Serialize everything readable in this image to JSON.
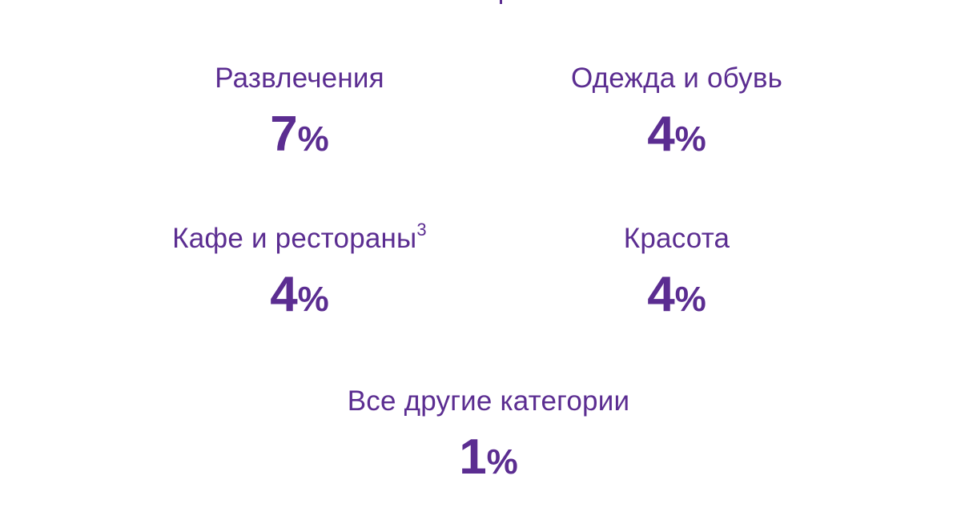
{
  "stats": [
    {
      "label": "Развлечения",
      "superscript": "",
      "value": "7",
      "unit": "%"
    },
    {
      "label": "Одежда и обувь",
      "superscript": "",
      "value": "4",
      "unit": "%"
    },
    {
      "label": "Кафе и рестораны",
      "superscript": "3",
      "value": "4",
      "unit": "%"
    },
    {
      "label": "Красота",
      "superscript": "",
      "value": "4",
      "unit": "%"
    },
    {
      "label": "Все другие категории",
      "superscript": "",
      "value": "1",
      "unit": "%"
    }
  ],
  "colors": {
    "accent": "#5b2d91",
    "background": "#ffffff"
  }
}
